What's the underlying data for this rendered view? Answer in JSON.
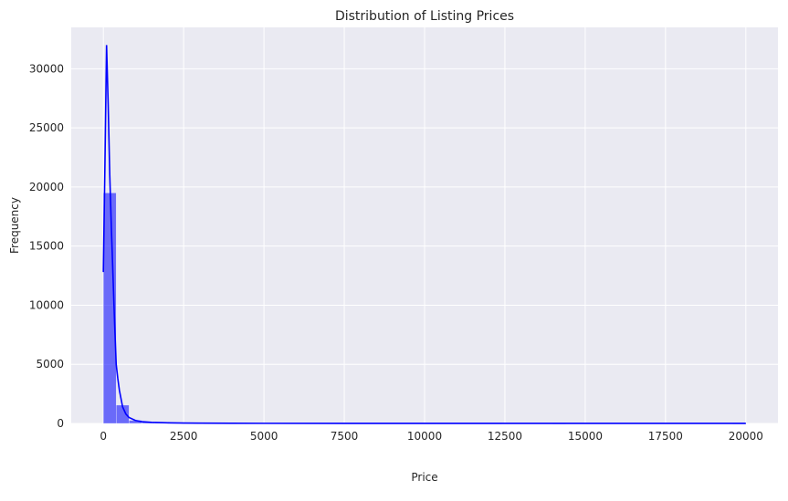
{
  "chart_data": {
    "type": "bar",
    "title": "Distribution of Listing Prices",
    "xlabel": "Price",
    "ylabel": "Frequency",
    "xlim": [
      -1000,
      21000
    ],
    "ylim": [
      0,
      33500
    ],
    "xticks": [
      0,
      2500,
      5000,
      7500,
      10000,
      12500,
      15000,
      17500,
      20000
    ],
    "xtick_labels": [
      "0",
      "2500",
      "5000",
      "7500",
      "10000",
      "12500",
      "15000",
      "17500",
      "20000"
    ],
    "yticks": [
      0,
      5000,
      10000,
      15000,
      20000,
      25000,
      30000
    ],
    "ytick_labels": [
      "0",
      "5000",
      "10000",
      "15000",
      "20000",
      "25000",
      "30000"
    ],
    "grid": true,
    "bin_width": 400,
    "histogram": {
      "bin_starts": [
        0,
        400,
        800,
        1200,
        1600,
        2000,
        2400,
        2800,
        3200,
        3600,
        4000,
        4400,
        4800,
        5200,
        5600,
        6000,
        6400,
        6800,
        7200,
        7600,
        8000,
        8400,
        8800,
        9200,
        9600,
        10000,
        10400,
        10800,
        11200,
        11600,
        12000,
        12400,
        12800,
        13200,
        13600,
        14000,
        14400,
        14800,
        15200,
        15600,
        16000,
        16400,
        16800,
        17200,
        17600,
        18000,
        18400,
        18800,
        19200,
        19600
      ],
      "values": [
        19500,
        1550,
        260,
        110,
        60,
        35,
        25,
        15,
        12,
        10,
        8,
        6,
        5,
        4,
        3,
        3,
        2,
        2,
        2,
        2,
        2,
        1,
        1,
        1,
        1,
        2,
        1,
        1,
        1,
        1,
        1,
        0,
        0,
        0,
        0,
        1,
        0,
        0,
        0,
        0,
        0,
        0,
        0,
        0,
        0,
        0,
        0,
        0,
        0,
        2
      ]
    },
    "kde": {
      "x": [
        0,
        50,
        100,
        150,
        200,
        250,
        300,
        350,
        400,
        450,
        500,
        600,
        700,
        800,
        1000,
        1200,
        1500,
        2000,
        2500,
        3000,
        4000,
        5000,
        7500,
        10000,
        12500,
        15000,
        17500,
        20000
      ],
      "y": [
        12800,
        22000,
        32000,
        27000,
        21000,
        16500,
        12500,
        8500,
        5000,
        3800,
        2800,
        1400,
        800,
        500,
        250,
        150,
        90,
        50,
        35,
        25,
        15,
        10,
        5,
        3,
        2,
        2,
        2,
        2
      ]
    },
    "colors": {
      "background": "#eaeaf2",
      "grid": "#ffffff",
      "bar_fill": "#0000ff",
      "bar_opacity": 0.55,
      "line": "#0000ff"
    }
  }
}
